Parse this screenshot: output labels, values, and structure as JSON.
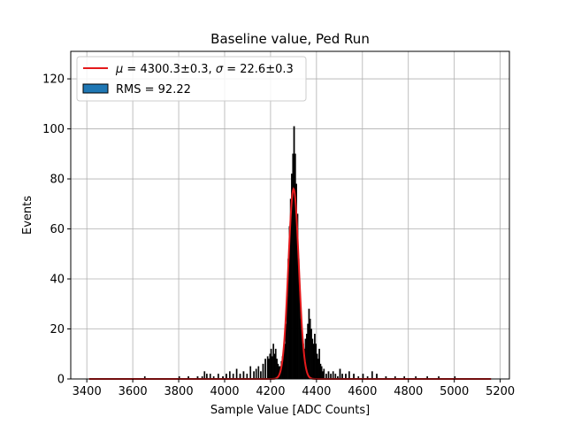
{
  "chart_data": {
    "type": "bar",
    "title": "Baseline value, Ped Run",
    "xlabel": "Sample Value [ADC Counts]",
    "ylabel": "Events",
    "xlim": [
      3330,
      5240
    ],
    "ylim": [
      0,
      131
    ],
    "xticks": [
      3400,
      3600,
      3800,
      4000,
      4200,
      4400,
      4600,
      4800,
      5000,
      5200
    ],
    "yticks": [
      0,
      20,
      40,
      60,
      80,
      100,
      120
    ],
    "grid": true,
    "legend_position": "top-left",
    "colors": {
      "histogram_fill": "#000000",
      "histogram_legend_face": "#1f77b4",
      "fit_line": "#e41a1c",
      "grid": "#b0b0b0"
    },
    "series": [
      {
        "name": "RMS = 92.22",
        "kind": "histogram",
        "bin_width": 5,
        "x": [
          3650,
          3800,
          3840,
          3880,
          3900,
          3910,
          3920,
          3935,
          3950,
          3970,
          3990,
          4005,
          4020,
          4035,
          4050,
          4065,
          4080,
          4095,
          4110,
          4125,
          4135,
          4145,
          4155,
          4165,
          4175,
          4185,
          4190,
          4195,
          4200,
          4205,
          4210,
          4215,
          4220,
          4225,
          4230,
          4235,
          4240,
          4245,
          4250,
          4255,
          4260,
          4265,
          4270,
          4275,
          4280,
          4285,
          4290,
          4295,
          4300,
          4305,
          4310,
          4315,
          4320,
          4325,
          4330,
          4335,
          4340,
          4345,
          4350,
          4355,
          4360,
          4365,
          4370,
          4375,
          4380,
          4385,
          4390,
          4395,
          4400,
          4405,
          4410,
          4415,
          4420,
          4425,
          4430,
          4440,
          4450,
          4460,
          4470,
          4480,
          4490,
          4500,
          4510,
          4525,
          4540,
          4560,
          4580,
          4600,
          4620,
          4640,
          4660,
          4700,
          4740,
          4780,
          4830,
          4880,
          4930,
          5000
        ],
        "values": [
          1,
          1,
          1,
          1,
          1,
          3,
          2,
          2,
          1,
          2,
          1,
          2,
          3,
          2,
          4,
          2,
          3,
          2,
          5,
          3,
          4,
          5,
          3,
          6,
          8,
          9,
          8,
          10,
          12,
          9,
          14,
          10,
          12,
          8,
          6,
          5,
          5,
          7,
          9,
          11,
          14,
          22,
          33,
          48,
          61,
          72,
          82,
          90,
          101,
          90,
          78,
          66,
          48,
          35,
          24,
          18,
          14,
          12,
          16,
          18,
          22,
          28,
          24,
          20,
          16,
          14,
          18,
          14,
          10,
          8,
          12,
          6,
          5,
          3,
          4,
          2,
          3,
          2,
          3,
          2,
          1,
          4,
          2,
          2,
          3,
          2,
          1,
          2,
          1,
          3,
          2,
          1,
          1,
          1,
          1,
          1,
          1,
          1
        ]
      },
      {
        "name": "$\\mu = 4300.3 \\pm 0.3$, $\\sigma = 22.6 \\pm 0.3$",
        "kind": "gaussian_fit",
        "mu": 4300.3,
        "sigma": 22.6,
        "amplitude": 76,
        "x_range": [
          3410,
          5160
        ]
      }
    ],
    "legend": {
      "fit_mu": "4300.3",
      "fit_mu_err": "0.3",
      "fit_sigma": "22.6",
      "fit_sigma_err": "0.3",
      "hist_label": "RMS = 92.22"
    }
  }
}
